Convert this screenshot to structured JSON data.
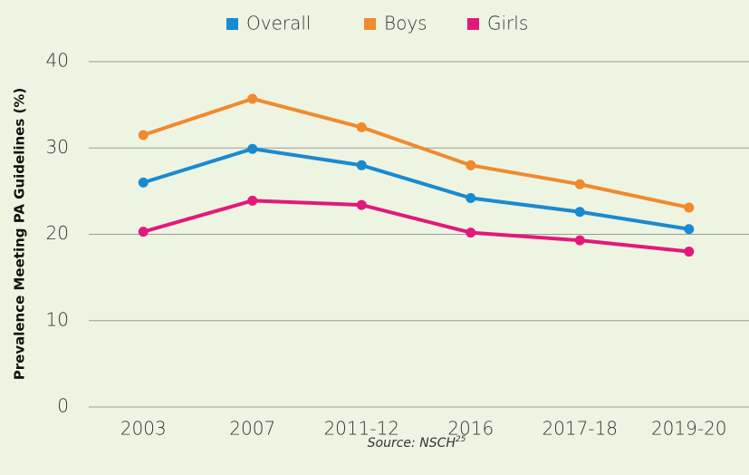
{
  "chart_data": {
    "type": "line",
    "y_label": "Prevalence Meeting PA Guidelines (%)",
    "source": "Source: NSCH",
    "source_ref": "25",
    "categories": [
      "2003",
      "2007",
      "2011-12",
      "2016",
      "2017-18",
      "2019-20"
    ],
    "series": [
      {
        "name": "Overall",
        "color": "#1a8ad0",
        "values": [
          26.0,
          29.9,
          28.0,
          24.2,
          22.6,
          20.6
        ]
      },
      {
        "name": "Boys",
        "color": "#f08a2c",
        "values": [
          31.5,
          35.7,
          32.4,
          28.0,
          25.8,
          23.1
        ]
      },
      {
        "name": "Girls",
        "color": "#e2197a",
        "values": [
          20.3,
          23.9,
          23.4,
          20.2,
          19.3,
          18.0
        ]
      }
    ],
    "ylim": [
      0,
      40
    ],
    "yticks": [
      0,
      10,
      20,
      30,
      40
    ],
    "grid": true,
    "legend": "top"
  }
}
